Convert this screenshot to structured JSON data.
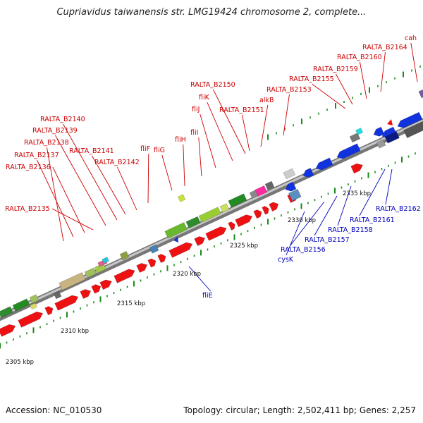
{
  "map": {
    "title": "Cupriavidus taiwanensis str. LMG19424 chromosome 2, complete...",
    "accession": "Accession: NC_010530",
    "summary": "Topology: circular; Length: 2,502,411 bp; Genes: 2,257"
  },
  "colors": {
    "label_top": "#cc0000",
    "label_bottom": "#0000bb",
    "forward_cds": "#ee1111",
    "reverse_cds": "#1133dd",
    "tick": "#1a8a1a"
  },
  "scale_ticks": [
    {
      "label": "2305 kbp"
    },
    {
      "label": "2310 kbp"
    },
    {
      "label": "2315 kbp"
    },
    {
      "label": "2320 kbp"
    },
    {
      "label": "2325 kbp"
    },
    {
      "label": "2330 kbp"
    },
    {
      "label": "2335 kbp"
    }
  ],
  "top_labels": [
    {
      "text": "RALTA_B2135"
    },
    {
      "text": "RALTA_B2136"
    },
    {
      "text": "RALTA_B2137"
    },
    {
      "text": "RALTA_B2138"
    },
    {
      "text": "RALTA_B2139"
    },
    {
      "text": "RALTA_B2140"
    },
    {
      "text": "RALTA_B2141"
    },
    {
      "text": "RALTA_B2142"
    },
    {
      "text": "fliF"
    },
    {
      "text": "fliG"
    },
    {
      "text": "fliH"
    },
    {
      "text": "fliI"
    },
    {
      "text": "fliJ"
    },
    {
      "text": "fliK"
    },
    {
      "text": "RALTA_B2150"
    },
    {
      "text": "RALTA_B2151"
    },
    {
      "text": "alkB"
    },
    {
      "text": "RALTA_B2153"
    },
    {
      "text": "RALTA_B2155"
    },
    {
      "text": "RALTA_B2159"
    },
    {
      "text": "RALTA_B2160"
    },
    {
      "text": "RALTA_B2164"
    },
    {
      "text": "cah"
    }
  ],
  "bottom_labels": [
    {
      "text": "fliE"
    },
    {
      "text": "cysK"
    },
    {
      "text": "RALTA_B2156"
    },
    {
      "text": "RALTA_B2157"
    },
    {
      "text": "RALTA_B2158"
    },
    {
      "text": "RALTA_B2161"
    },
    {
      "text": "RALTA_B2162"
    }
  ]
}
